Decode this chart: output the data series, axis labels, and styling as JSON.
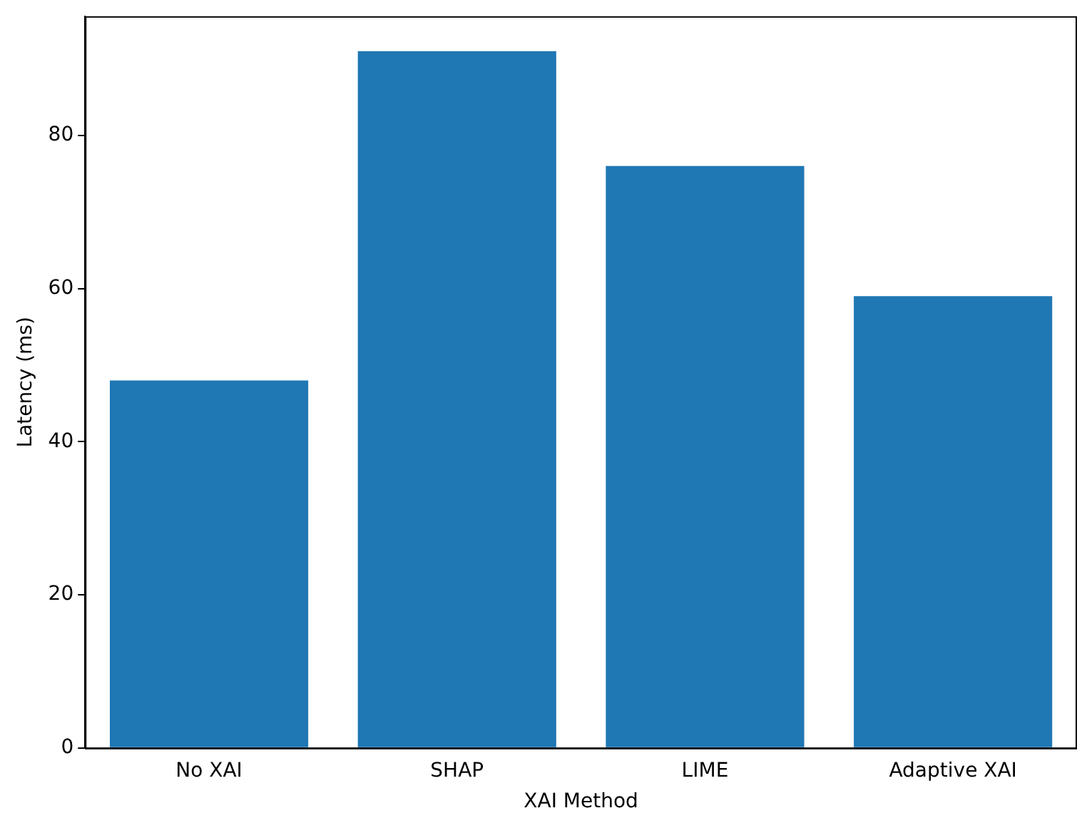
{
  "chart_data": {
    "type": "bar",
    "xlabel": "XAI Method",
    "ylabel": "Latency (ms)",
    "categories": [
      "No XAI",
      "SHAP",
      "LIME",
      "Adaptive XAI"
    ],
    "values": [
      48,
      91,
      76,
      59
    ],
    "color": "#1f77b4",
    "ylim": [
      0,
      95.55
    ],
    "yticks": [
      0,
      20,
      40,
      60,
      80
    ],
    "grid": false,
    "legend": false
  }
}
